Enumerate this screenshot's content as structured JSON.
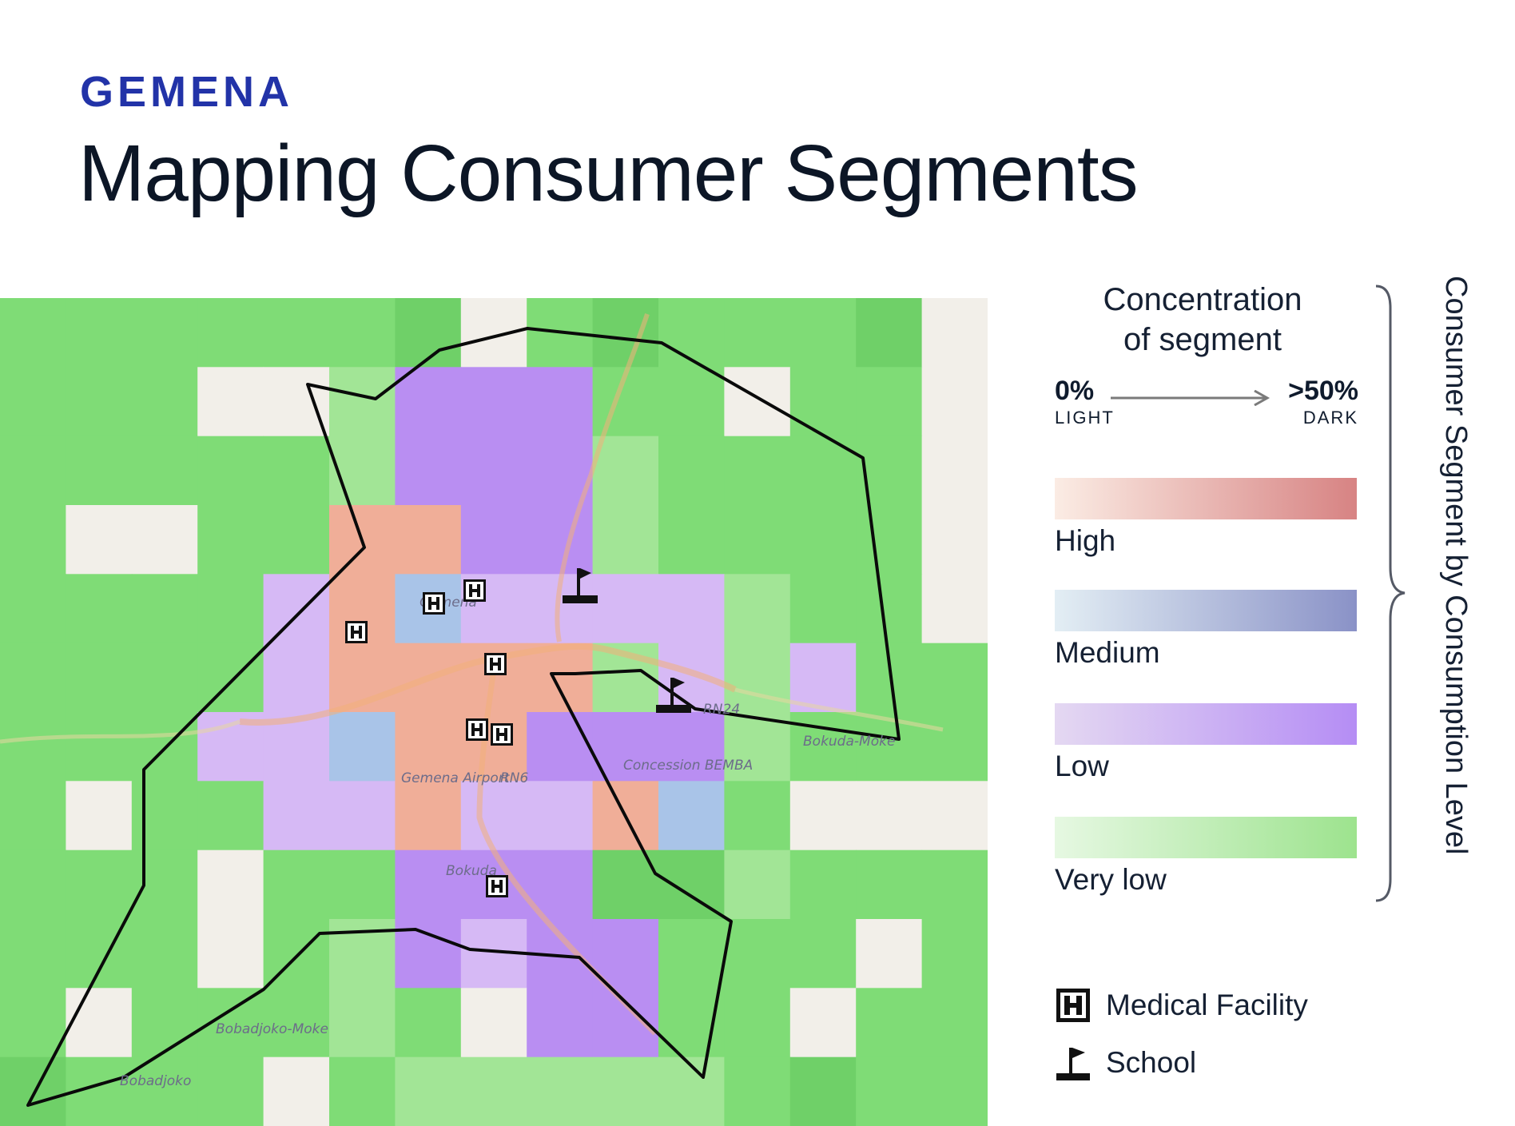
{
  "header": {
    "kicker": "GEMENA",
    "title": "Mapping Consumer Segments"
  },
  "legend": {
    "concentration_title_line1": "Concentration",
    "concentration_title_line2": "of segment",
    "scale_low": "0%",
    "scale_low_sub": "LIGHT",
    "scale_high": ">50%",
    "scale_high_sub": "DARK",
    "segments": [
      {
        "label": "High",
        "color_light": "#fbece4",
        "color_dark": "#d78383"
      },
      {
        "label": "Medium",
        "color_light": "#e3eef4",
        "color_dark": "#8a92c7"
      },
      {
        "label": "Low",
        "color_light": "#e4d8f2",
        "color_dark": "#b58df4"
      },
      {
        "label": "Very low",
        "color_light": "#e6f8e2",
        "color_dark": "#9de38e"
      }
    ],
    "side_label": "Consumer Segment by Consumption Level",
    "keys": [
      {
        "icon": "medical-facility-icon",
        "label": "Medical Facility"
      },
      {
        "icon": "school-flag-icon",
        "label": "School"
      }
    ]
  },
  "map": {
    "place_labels": [
      "Gemena",
      "Gemena Airport",
      "RN6",
      "Concession BEMBA",
      "Bokuda",
      "Bokuda-Moke",
      "RN24",
      "Bobadjoko-Moke",
      "Bobadjoko"
    ],
    "grid": {
      "rows": 12,
      "cols": 15,
      "cells": [
        "GGGGGGDEGDGGGDW",
        "GGGEEgPPPGGEGGE",
        "GGGGGgPPPgGGGGE",
        "GWWGGHHPPgGGGGW",
        "GGGGLHMLLLLgGGE",
        "GGGGLHHHHgLgLGG",
        "GGGLLMHHPPPgGGG",
        "GWGGLLHLLHMGWWW",
        "GGGWGGPPPDDgGGG",
        "GGGWGgPLPPGGGWG",
        "GWGGGgGEPPGGWGG",
        "DGGGWGgggggGDGG"
      ]
    },
    "colors": {
      "green": "#7fdc76",
      "green_dark": "#6fd068",
      "green_light": "#a2e596",
      "empty": "#f2efe9",
      "purple": "#b98ef2",
      "purple_light": "#d6b9f5",
      "high": "#f0ae98",
      "medium": "#a9c4e8",
      "outline": "#0a0a0a"
    }
  }
}
